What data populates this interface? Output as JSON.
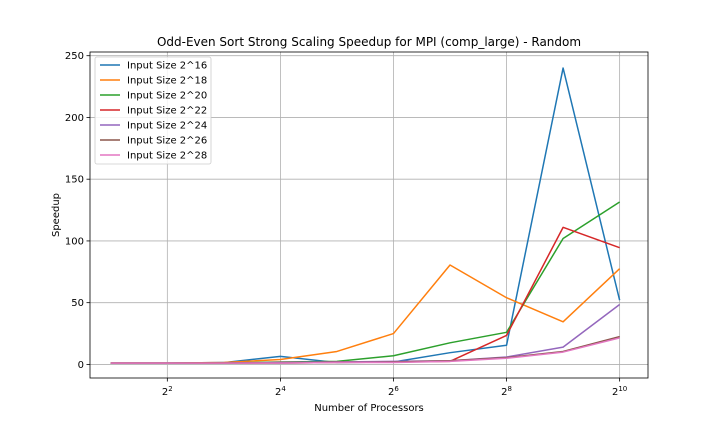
{
  "chart_data": {
    "type": "line",
    "title": "Odd-Even Sort Strong Scaling Speedup for MPI (comp_large) - Random",
    "xlabel": "Number of Processors",
    "ylabel": "Speedup",
    "x_scale": "log2",
    "x": [
      2,
      4,
      8,
      16,
      32,
      64,
      128,
      256,
      512,
      1024
    ],
    "xlim": [
      1.55,
      1450
    ],
    "ylim": [
      -11,
      253
    ],
    "x_ticks": [
      {
        "value": 4,
        "base": "2",
        "exp": "2"
      },
      {
        "value": 16,
        "base": "2",
        "exp": "4"
      },
      {
        "value": 64,
        "base": "2",
        "exp": "6"
      },
      {
        "value": 256,
        "base": "2",
        "exp": "8"
      },
      {
        "value": 1024,
        "base": "2",
        "exp": "10"
      }
    ],
    "y_ticks": [
      0,
      50,
      100,
      150,
      200,
      250
    ],
    "grid": true,
    "legend_position": "top-left",
    "series": [
      {
        "name": "Input Size 2^16",
        "color": "#1f77b4",
        "values": [
          1,
          1,
          1.5,
          6.5,
          1.5,
          2,
          9.5,
          15.5,
          240,
          52
        ]
      },
      {
        "name": "Input Size 2^18",
        "color": "#ff7f0e",
        "values": [
          1,
          1,
          1.5,
          4,
          10.5,
          25,
          80.5,
          54,
          34.5,
          77.5
        ]
      },
      {
        "name": "Input Size 2^20",
        "color": "#2ca02c",
        "values": [
          1,
          1,
          1,
          2,
          2.5,
          7,
          17.5,
          26,
          102,
          131.5
        ]
      },
      {
        "name": "Input Size 2^22",
        "color": "#d62728",
        "values": [
          1,
          1,
          1,
          1.5,
          2,
          2,
          2.5,
          23.5,
          111,
          94.5
        ]
      },
      {
        "name": "Input Size 2^24",
        "color": "#9467bd",
        "values": [
          1,
          1,
          1,
          1.5,
          2,
          2.5,
          3,
          6,
          14,
          48.5
        ]
      },
      {
        "name": "Input Size 2^26",
        "color": "#8c564b",
        "values": [
          1,
          1,
          1,
          1,
          1.5,
          2,
          3,
          5.5,
          10.5,
          22.5
        ]
      },
      {
        "name": "Input Size 2^28",
        "color": "#e377c2",
        "values": [
          1,
          1,
          1,
          1,
          1.5,
          1.5,
          2.5,
          5,
          10,
          21.5
        ]
      }
    ]
  }
}
